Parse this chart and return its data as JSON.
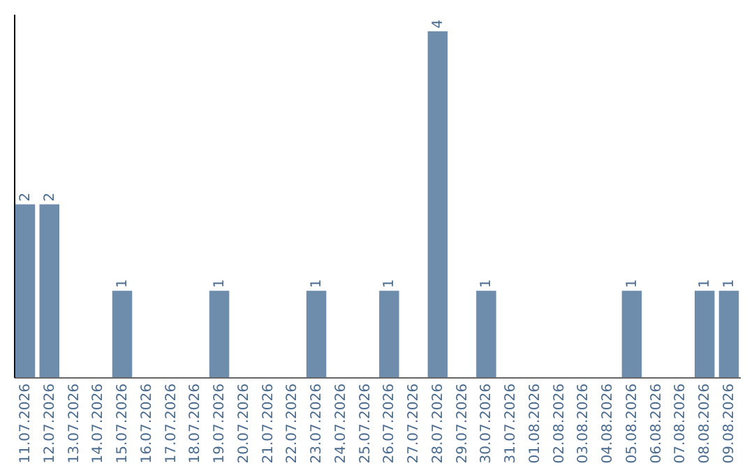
{
  "chart_data": {
    "type": "bar",
    "categories": [
      "11.07.2026",
      "12.07.2026",
      "13.07.2026",
      "14.07.2026",
      "15.07.2026",
      "16.07.2026",
      "17.07.2026",
      "18.07.2026",
      "19.07.2026",
      "20.07.2026",
      "21.07.2026",
      "22.07.2026",
      "23.07.2026",
      "24.07.2026",
      "25.07.2026",
      "26.07.2026",
      "27.07.2026",
      "28.07.2026",
      "29.07.2026",
      "30.07.2026",
      "31.07.2026",
      "01.08.2026",
      "02.08.2026",
      "03.08.2026",
      "04.08.2026",
      "05.08.2026",
      "06.08.2026",
      "07.08.2026",
      "08.08.2026",
      "09.08.2026"
    ],
    "values": [
      2,
      2,
      0,
      0,
      1,
      0,
      0,
      0,
      1,
      0,
      0,
      0,
      1,
      0,
      0,
      1,
      0,
      4,
      0,
      1,
      0,
      0,
      0,
      0,
      0,
      1,
      0,
      0,
      1,
      1
    ],
    "value_labels": [
      "2",
      "2",
      null,
      null,
      "1",
      null,
      null,
      null,
      "1",
      null,
      null,
      null,
      "1",
      null,
      null,
      "1",
      null,
      "4",
      null,
      "1",
      null,
      null,
      null,
      null,
      null,
      "1",
      null,
      null,
      "1",
      "1"
    ],
    "color": "#6e8cab",
    "ylim": [
      0,
      4.2
    ],
    "tick_labels": "x"
  }
}
